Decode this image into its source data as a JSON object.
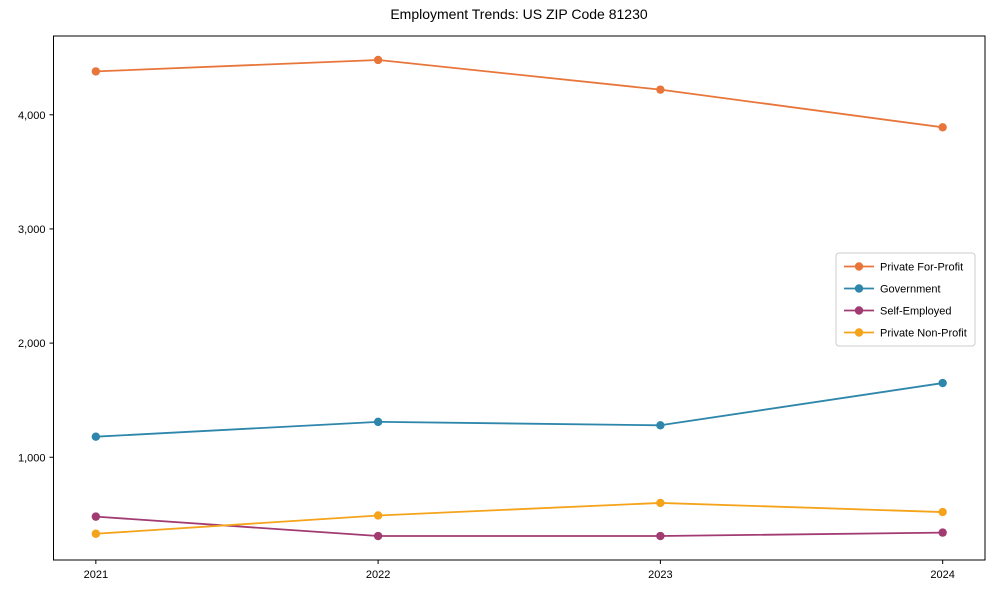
{
  "chart_data": {
    "type": "line",
    "title": "Employment Trends: US ZIP Code 81230",
    "xlabel": "",
    "ylabel": "",
    "grid": false,
    "legend_position": "center-right",
    "background": "#ffffff",
    "frame_color": "#000000",
    "x": [
      2021,
      2022,
      2023,
      2024
    ],
    "xtick_labels": [
      "2021",
      "2022",
      "2023",
      "2024"
    ],
    "yticks": [
      1000,
      2000,
      3000,
      4000
    ],
    "ytick_labels": [
      "1,000",
      "2,000",
      "3,000",
      "4,000"
    ],
    "xlim": [
      2020.85,
      2024.15
    ],
    "ylim": [
      100,
      4690
    ],
    "series": [
      {
        "name": "Private For-Profit",
        "color": "#E8763B",
        "values": [
          4380,
          4480,
          4220,
          3890
        ]
      },
      {
        "name": "Government",
        "color": "#2E86AB",
        "values": [
          1180,
          1310,
          1280,
          1650
        ]
      },
      {
        "name": "Self-Employed",
        "color": "#A23B72",
        "values": [
          480,
          310,
          310,
          340
        ]
      },
      {
        "name": "Private Non-Profit",
        "color": "#F5A31B",
        "values": [
          330,
          490,
          600,
          520
        ]
      }
    ]
  }
}
